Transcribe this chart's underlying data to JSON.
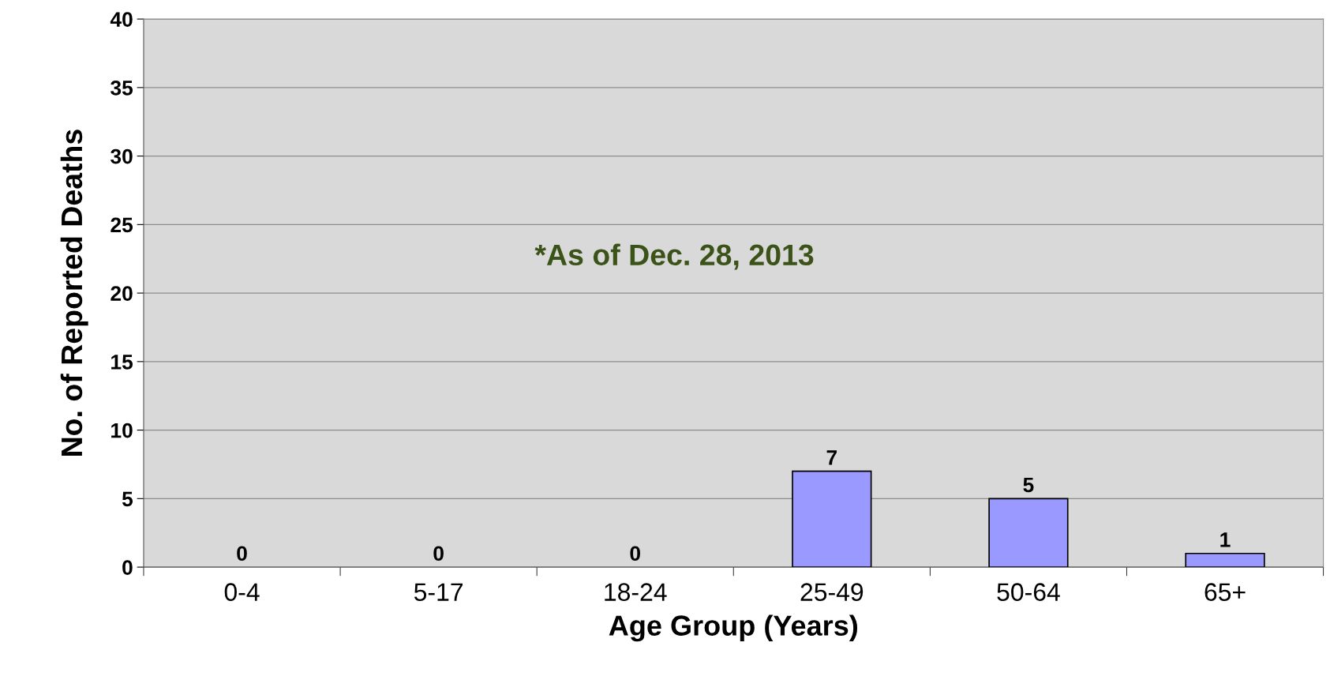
{
  "chart_data": {
    "type": "bar",
    "xlabel": "Age Group (Years)",
    "ylabel": "No. of Reported Deaths",
    "categories": [
      "0-4",
      "5-17",
      "18-24",
      "25-49",
      "50-64",
      "65+"
    ],
    "values": [
      0,
      0,
      0,
      7,
      5,
      1
    ],
    "color": "#9999ff",
    "ylim": [
      0,
      40
    ],
    "yticks": [
      0,
      5,
      10,
      15,
      20,
      25,
      30,
      35,
      40
    ],
    "grid": "y",
    "data_labels": true,
    "legend": false,
    "annotations": [
      "*As of Dec. 28, 2013"
    ]
  }
}
